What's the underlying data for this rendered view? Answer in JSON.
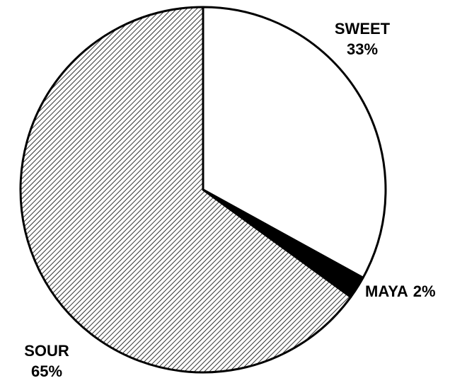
{
  "chart_data": {
    "type": "pie",
    "categories": [
      "SWEET",
      "MAYA",
      "SOUR"
    ],
    "values": [
      33,
      2,
      65
    ],
    "value_labels": [
      "33%",
      "2%",
      "65%"
    ],
    "colors": [
      "#ffffff",
      "#000000",
      "#000000"
    ],
    "hatch": [
      false,
      false,
      true
    ]
  }
}
